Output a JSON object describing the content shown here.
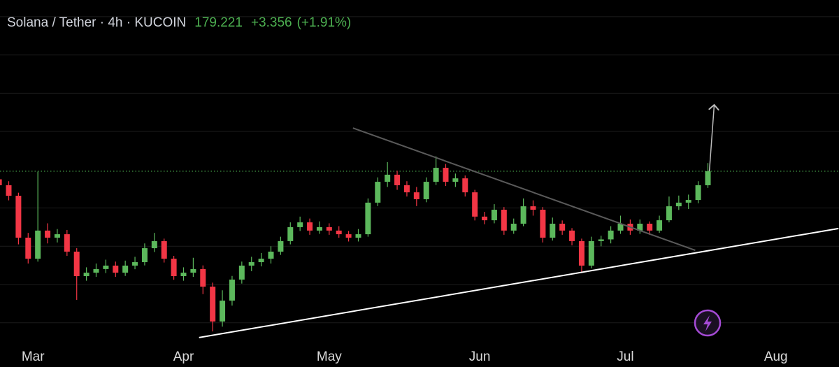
{
  "chart_data": {
    "type": "candlestick",
    "title": "Solana / Tether · 4h · KUCOIN",
    "last": {
      "value": 179.221,
      "label": "179.221"
    },
    "change": {
      "value": 3.356,
      "label": "+3.356"
    },
    "change_pct": {
      "value": 1.91,
      "label": "(+1.91%)"
    },
    "x": [
      -7,
      -5,
      -3,
      -1,
      1,
      3,
      5,
      7,
      9,
      11,
      13,
      15,
      17,
      19,
      21,
      23,
      25,
      27,
      29,
      31,
      33,
      35,
      37,
      39,
      41,
      43,
      45,
      47,
      49,
      51,
      53,
      55,
      57,
      59,
      61,
      63,
      65,
      67,
      69,
      71,
      73,
      75,
      77,
      79,
      81,
      83,
      85,
      87,
      89,
      91,
      93,
      95,
      97,
      99,
      101,
      103,
      105,
      107,
      109,
      111,
      113,
      115,
      117,
      119,
      121,
      123,
      125,
      127,
      129,
      131,
      133,
      135,
      137,
      139
    ],
    "open": [
      175.0,
      171.9,
      166.4,
      144.5,
      133.5,
      148.2,
      144.5,
      146.3,
      137.2,
      124.4,
      126.2,
      128.1,
      129.9,
      126.2,
      129.9,
      131.7,
      139.0,
      142.7,
      133.5,
      124.4,
      126.2,
      128.1,
      118.9,
      100.7,
      111.6,
      122.6,
      129.9,
      131.7,
      133.5,
      137.2,
      142.7,
      150.0,
      152.5,
      148.2,
      150.0,
      148.2,
      146.3,
      144.5,
      146.3,
      162.8,
      173.7,
      177.4,
      171.9,
      168.2,
      164.6,
      173.7,
      181.0,
      173.7,
      175.5,
      168.2,
      155.5,
      153.6,
      159.1,
      148.2,
      151.8,
      160.9,
      159.1,
      144.5,
      151.8,
      148.2,
      142.7,
      129.9,
      142.7,
      143.6,
      148.2,
      151.8,
      148.2,
      151.8,
      148.2,
      153.6,
      160.9,
      162.8,
      164.2,
      171.9
    ],
    "high": [
      177.5,
      174.0,
      168.0,
      147.0,
      179.0,
      152.0,
      149.0,
      148.5,
      139.0,
      129.0,
      131.0,
      133.0,
      132.0,
      132.5,
      134.5,
      141.5,
      147.0,
      144.0,
      135.0,
      129.0,
      134.0,
      130.0,
      121.0,
      117.0,
      124.5,
      132.0,
      134.5,
      136.5,
      140.0,
      145.0,
      152.5,
      155.5,
      154.5,
      153.0,
      152.0,
      150.5,
      148.0,
      149.0,
      165.0,
      176.0,
      184.0,
      179.5,
      174.0,
      171.0,
      176.0,
      187.0,
      183.0,
      178.0,
      177.0,
      169.5,
      158.0,
      162.0,
      160.5,
      154.5,
      165.0,
      164.0,
      160.5,
      155.0,
      153.5,
      149.5,
      144.0,
      145.0,
      145.5,
      150.5,
      156.0,
      154.0,
      154.0,
      153.0,
      156.0,
      166.0,
      166.5,
      167.0,
      174.0,
      183.5
    ],
    "low": [
      169.5,
      164.0,
      141.0,
      131.0,
      132.0,
      141.5,
      142.0,
      135.0,
      112.0,
      122.0,
      124.0,
      126.0,
      124.0,
      124.5,
      128.0,
      130.0,
      137.0,
      131.5,
      122.5,
      122.0,
      124.0,
      115.0,
      95.5,
      98.0,
      109.0,
      120.5,
      127.0,
      129.5,
      131.0,
      135.5,
      141.0,
      148.0,
      146.0,
      146.5,
      146.0,
      144.5,
      142.5,
      142.5,
      145.0,
      161.0,
      171.0,
      169.5,
      166.0,
      161.0,
      163.0,
      172.0,
      171.5,
      171.0,
      166.0,
      153.5,
      151.5,
      152.0,
      146.0,
      146.5,
      150.5,
      156.0,
      142.0,
      143.0,
      146.0,
      140.5,
      126.5,
      128.5,
      140.0,
      141.5,
      146.5,
      146.0,
      146.5,
      146.0,
      147.0,
      152.5,
      159.0,
      159.5,
      162.5,
      170.5
    ],
    "close": [
      171.9,
      166.4,
      144.5,
      133.5,
      148.2,
      144.5,
      146.3,
      137.2,
      124.4,
      126.2,
      128.1,
      129.9,
      126.2,
      129.9,
      131.7,
      139.0,
      142.7,
      133.5,
      124.4,
      126.2,
      128.1,
      118.9,
      100.7,
      111.6,
      122.6,
      129.9,
      131.7,
      133.5,
      137.2,
      142.7,
      150.0,
      152.5,
      148.2,
      150.0,
      148.2,
      146.3,
      144.5,
      146.3,
      162.8,
      173.7,
      177.4,
      171.9,
      168.2,
      164.6,
      173.7,
      181.0,
      173.7,
      175.5,
      168.2,
      155.5,
      153.6,
      159.1,
      148.2,
      151.8,
      160.9,
      159.1,
      144.5,
      151.8,
      148.2,
      142.7,
      129.9,
      142.7,
      143.6,
      148.2,
      151.8,
      148.2,
      151.8,
      148.2,
      153.6,
      160.9,
      162.8,
      164.2,
      171.9,
      179.2
    ],
    "up_color": "#5cb85c",
    "down_color": "#f23645",
    "xlim": [
      -6.8,
      166
    ],
    "xticks": [
      {
        "value": 0,
        "label": "Mar"
      },
      {
        "value": 31,
        "label": "Apr"
      },
      {
        "value": 61,
        "label": "May"
      },
      {
        "value": 92,
        "label": "Jun"
      },
      {
        "value": 122,
        "label": "Jul"
      },
      {
        "value": 153,
        "label": "Aug"
      }
    ],
    "ylim": [
      89.7,
      268.7
    ],
    "grid": true,
    "ygrid": [
      100,
      120,
      140,
      160,
      200,
      220,
      240,
      260
    ],
    "trendlines": [
      {
        "x": [
          34.2,
          165.9
        ],
        "y": [
          92.3,
          149.3
        ],
        "color": "#ffffff"
      },
      {
        "x": [
          65.9,
          136.4
        ],
        "y": [
          201.8,
          137.9
        ],
        "color": "#5a5a5a"
      },
      {
        "x": [
          139.3,
          140.3
        ],
        "y": [
          179.2,
          213.9
        ],
        "color": "#bdbdbd",
        "arrow": true
      }
    ]
  }
}
